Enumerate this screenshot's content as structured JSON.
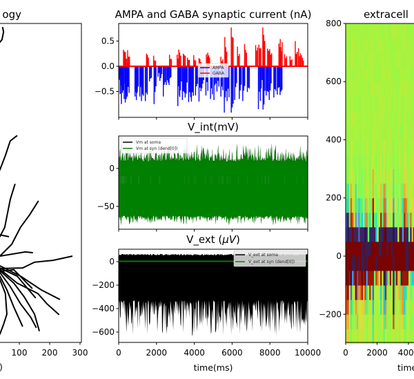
{
  "chart_data": [
    {
      "type": "line",
      "title": "ogy",
      "xlabel": ")",
      "xticks": [
        0,
        100,
        200,
        300
      ],
      "xtick_labels": [
        "0",
        "100",
        "200",
        "300"
      ],
      "xlim_right": 300,
      "line_color": "#000000",
      "branches": [
        [
          [
            45,
            754
          ],
          [
            48,
            738
          ],
          [
            43,
            713
          ],
          [
            36,
            704
          ],
          [
            20,
            690
          ]
        ],
        [
          [
            93,
            397
          ],
          [
            70,
            379
          ],
          [
            54,
            331
          ],
          [
            36,
            284
          ],
          [
            20,
            250
          ]
        ],
        [
          [
            163,
            182
          ],
          [
            134,
            136
          ],
          [
            104,
            95
          ],
          [
            75,
            39
          ],
          [
            36,
            0
          ],
          [
            10,
            -10
          ]
        ],
        [
          [
            86,
            238
          ],
          [
            70,
            186
          ],
          [
            52,
            95
          ],
          [
            36,
            64
          ],
          [
            15,
            50
          ]
        ],
        [
          [
            10,
            0
          ],
          [
            36,
            0
          ],
          [
            120,
            14
          ],
          [
            145,
            11
          ]
        ],
        [
          [
            10,
            -40
          ],
          [
            36,
            -41
          ],
          [
            111,
            -39
          ],
          [
            150,
            -20
          ],
          [
            211,
            -14
          ],
          [
            275,
            0
          ]
        ],
        [
          [
            10,
            -50
          ],
          [
            36,
            -50
          ],
          [
            82,
            -45
          ],
          [
            143,
            -107
          ]
        ],
        [
          [
            10,
            -28
          ],
          [
            36,
            -32
          ],
          [
            104,
            -66
          ],
          [
            172,
            -111
          ],
          [
            234,
            -143
          ]
        ],
        [
          [
            10,
            -40
          ],
          [
            36,
            -43
          ],
          [
            93,
            -89
          ],
          [
            161,
            -123
          ],
          [
            191,
            -157
          ],
          [
            231,
            -193
          ]
        ],
        [
          [
            10,
            -44
          ],
          [
            36,
            -48
          ],
          [
            82,
            -89
          ],
          [
            116,
            -134
          ],
          [
            150,
            -191
          ],
          [
            166,
            -247
          ]
        ],
        [
          [
            10,
            -50
          ],
          [
            36,
            -54
          ],
          [
            70,
            -100
          ],
          [
            104,
            -157
          ],
          [
            138,
            -202
          ],
          [
            156,
            -236
          ]
        ],
        [
          [
            10,
            -60
          ],
          [
            36,
            -66
          ],
          [
            59,
            -111
          ],
          [
            82,
            -168
          ],
          [
            111,
            -232
          ]
        ],
        [
          [
            10,
            -70
          ],
          [
            36,
            -77
          ],
          [
            54,
            -123
          ],
          [
            59,
            -191
          ],
          [
            48,
            -225
          ],
          [
            36,
            -257
          ],
          [
            20,
            -280
          ]
        ],
        [
          [
            10,
            -36
          ],
          [
            36,
            -39
          ],
          [
            93,
            -66
          ],
          [
            154,
            -138
          ]
        ],
        [
          [
            10,
            72
          ],
          [
            36,
            70
          ],
          [
            66,
            64
          ]
        ]
      ]
    },
    {
      "type": "bar",
      "title": "AMPA and GABA synaptic current (nA)",
      "xlim": [
        0,
        10000
      ],
      "ylim": [
        -1.0,
        0.86
      ],
      "yticks": [
        0.5,
        0.0,
        -0.5
      ],
      "ytick_labels": [
        "0.5",
        "0.0",
        "−0.5"
      ],
      "legend": "center",
      "series": [
        {
          "name": "AMPA",
          "color": "#0000ff",
          "events": [
            [
              37,
              -0.3
            ],
            [
              134,
              -0.55
            ],
            [
              195,
              -0.75
            ],
            [
              341,
              -0.65
            ],
            [
              402,
              -0.72
            ],
            [
              499,
              -0.6
            ],
            [
              914,
              -0.6
            ],
            [
              987,
              -0.67
            ],
            [
              1169,
              -0.6
            ],
            [
              1255,
              -0.69
            ],
            [
              1462,
              -0.69
            ],
            [
              1681,
              -0.3
            ],
            [
              1924,
              -0.75
            ],
            [
              2132,
              -0.21
            ],
            [
              2229,
              -0.29
            ],
            [
              2412,
              -0.6
            ],
            [
              2570,
              -0.37
            ],
            [
              2716,
              -0.37
            ],
            [
              3179,
              -0.79
            ],
            [
              3264,
              -0.58
            ],
            [
              3423,
              -0.67
            ],
            [
              3569,
              -0.62
            ],
            [
              3752,
              -0.71
            ],
            [
              3898,
              -0.7
            ],
            [
              4117,
              -0.58
            ],
            [
              4300,
              -0.7
            ],
            [
              4446,
              -0.44
            ],
            [
              4665,
              -0.58
            ],
            [
              4909,
              -0.65
            ],
            [
              5091,
              -0.67
            ],
            [
              5250,
              -0.5
            ],
            [
              5457,
              -0.6
            ],
            [
              5639,
              -0.92
            ],
            [
              5786,
              -0.69
            ],
            [
              6005,
              -0.92
            ],
            [
              6188,
              -0.67
            ],
            [
              6431,
              -0.65
            ],
            [
              6614,
              -0.69
            ],
            [
              6857,
              -0.51
            ],
            [
              7442,
              -0.85
            ],
            [
              7588,
              -0.44
            ],
            [
              7686,
              -0.86
            ],
            [
              7856,
              -0.58
            ],
            [
              8015,
              -0.67
            ],
            [
              8258,
              -0.62
            ],
            [
              8441,
              -0.56
            ],
            [
              8587,
              -0.57
            ]
          ]
        },
        {
          "name": "GABA",
          "color": "#ff0000",
          "events": [
            [
              304,
              0.33
            ],
            [
              402,
              0.22
            ],
            [
              524,
              0.32
            ],
            [
              1523,
              0.25
            ],
            [
              1900,
              0.21
            ],
            [
              2741,
              0.23
            ],
            [
              3142,
              0.23
            ],
            [
              3228,
              0.33
            ],
            [
              3471,
              0.25
            ],
            [
              3691,
              0.17
            ],
            [
              4019,
              0.22
            ],
            [
              4300,
              0.16
            ],
            [
              4689,
              0.24
            ],
            [
              4762,
              0.27
            ],
            [
              5457,
              0.19
            ],
            [
              5664,
              0.58
            ],
            [
              6005,
              0.77
            ],
            [
              6334,
              0.39
            ],
            [
              6711,
              0.44
            ],
            [
              7296,
              0.42
            ],
            [
              7467,
              0.43
            ],
            [
              7674,
              0.77
            ],
            [
              7929,
              0.35
            ],
            [
              8039,
              0.34
            ],
            [
              8526,
              0.45
            ],
            [
              8599,
              0.54
            ],
            [
              8831,
              0.24
            ],
            [
              9111,
              0.2
            ],
            [
              9391,
              0.5
            ],
            [
              9562,
              0.36
            ],
            [
              9720,
              0.22
            ]
          ]
        }
      ]
    },
    {
      "type": "line",
      "title": "V_int(mV)",
      "xlim": [
        0,
        10000
      ],
      "ylim": [
        -80,
        43
      ],
      "yticks": [
        0,
        -50
      ],
      "ytick_labels": [
        "0",
        "−50"
      ],
      "legend": "upper left",
      "series": [
        {
          "name": "Vm at soma",
          "color": "#000000",
          "range": [
            -72,
            25
          ]
        },
        {
          "name": "Vm at syn (dend[0])",
          "color": "#008000",
          "range": [
            -75,
            30
          ]
        }
      ]
    },
    {
      "type": "line",
      "title_prefix": "V_ext (",
      "title_math": "μV",
      "title_suffix": ")",
      "xlim": [
        0,
        10000
      ],
      "ylim": [
        -688,
        106
      ],
      "yticks": [
        0,
        -200,
        -400,
        -600
      ],
      "ytick_labels": [
        "0",
        "−200",
        "−400",
        "−600"
      ],
      "xticks": [
        0,
        2000,
        4000,
        6000,
        8000,
        10000
      ],
      "xtick_labels": [
        "0",
        "2000",
        "4000",
        "6000",
        "8000",
        "10000"
      ],
      "xlabel": "time(ms)",
      "legend": "upper right",
      "series": [
        {
          "name": "V_ext at soma",
          "color": "#000000",
          "range": [
            -650,
            65
          ]
        },
        {
          "name": "V_ext at syn (dend[0])",
          "color": "#008000",
          "range": [
            0,
            5
          ]
        }
      ]
    },
    {
      "type": "heatmap",
      "title": "extracell",
      "xlabel": "time",
      "colormap": "turbo",
      "ylim": [
        -300,
        800
      ],
      "yticks": [
        800,
        600,
        400,
        200,
        0,
        -200
      ],
      "ytick_labels": [
        "800",
        "600",
        "400",
        "200",
        "0",
        "−200"
      ],
      "xticks": [
        0,
        2000,
        4000
      ],
      "xtick_labels": [
        "0",
        "2000",
        "4000"
      ],
      "row_step": 50
    }
  ]
}
